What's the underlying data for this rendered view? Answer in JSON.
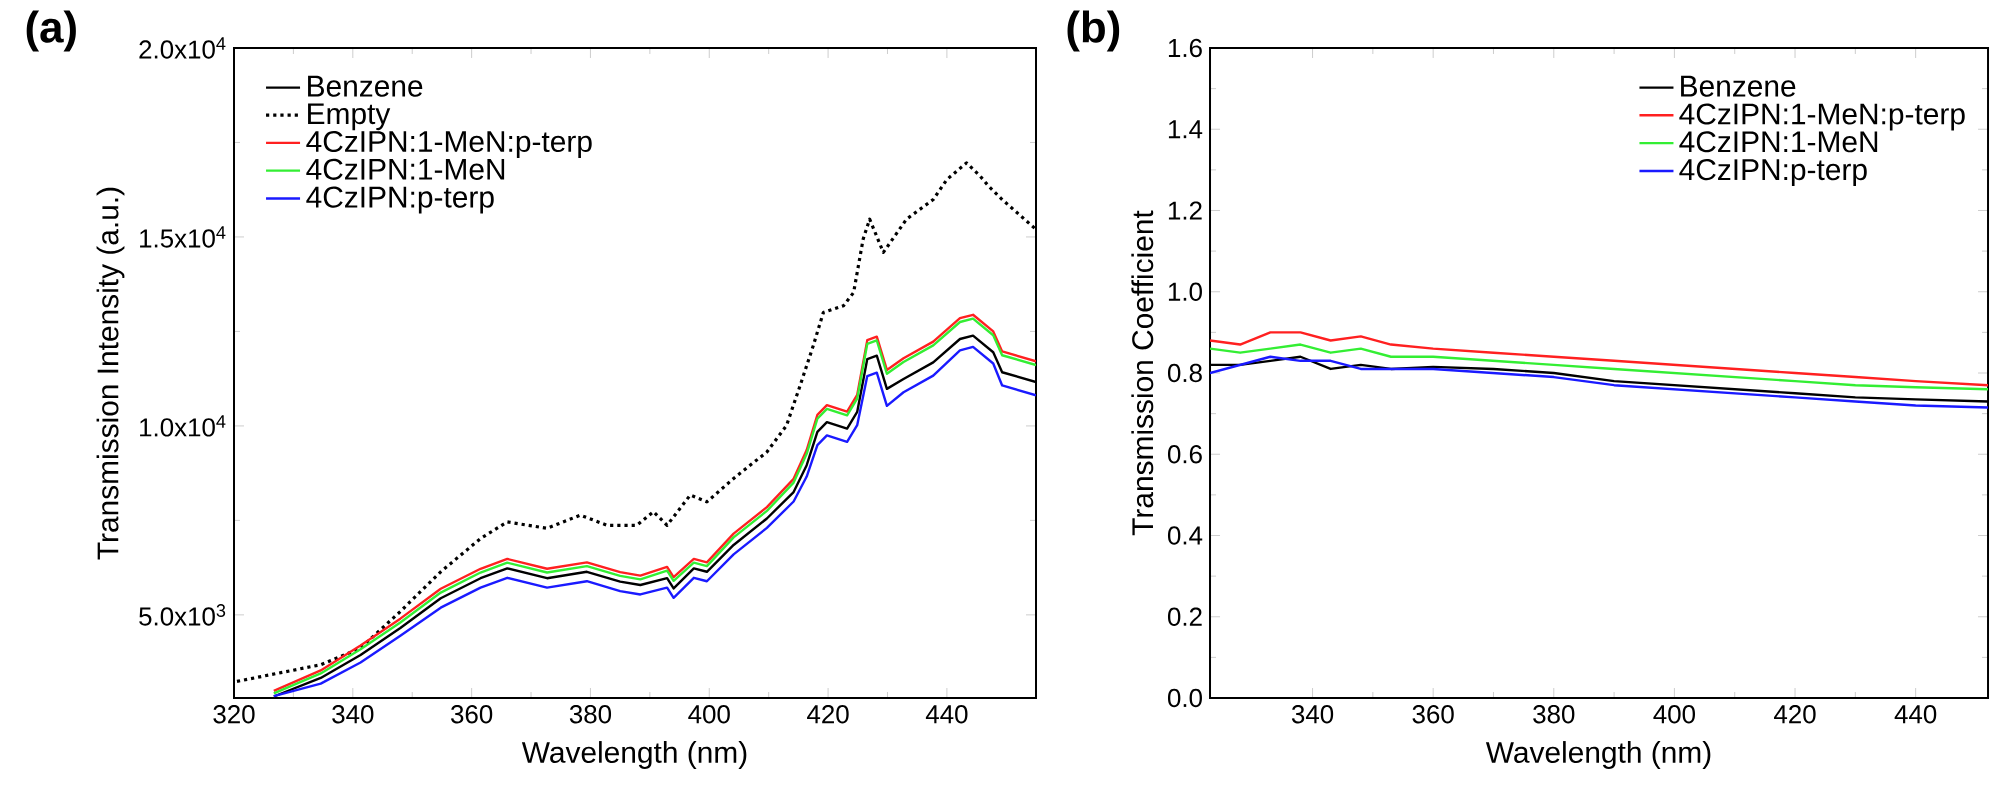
{
  "chart_data": [
    {
      "type": "line",
      "title": "(a)",
      "xlabel": "Wavelength (nm)",
      "ylabel": "Transmission Intensity (a.u.)",
      "xlim": [
        320,
        455
      ],
      "ylim": [
        2800,
        20000
      ],
      "xticks": [
        320,
        340,
        360,
        380,
        400,
        420,
        440
      ],
      "yticks": [
        {
          "value": 5000,
          "label": "5.0x10$^{3}$"
        },
        {
          "value": 10000,
          "label": "1.0x10$^{4}$"
        },
        {
          "value": 15000,
          "label": "1.5x10$^{4}$"
        },
        {
          "value": 20000,
          "label": "2.0x10$^{4}$"
        }
      ],
      "legend": "top left",
      "marker": "none",
      "series": [
        {
          "name": "Benzene",
          "color": "#000000",
          "x": [
            326.7,
            334.6,
            341.3,
            348,
            354.8,
            361.5,
            366,
            372.7,
            379.4,
            385,
            388.4,
            392.9,
            394,
            397.4,
            399.6,
            404.1,
            409.7,
            414.2,
            416.4,
            418.2,
            419.8,
            423.2,
            424.9,
            426.6,
            428.2,
            429.9,
            432.7,
            437.7,
            442.2,
            444.4,
            447.8,
            449.3,
            455
          ],
          "values": [
            2840,
            3330,
            3940,
            4650,
            5440,
            5970,
            6230,
            5970,
            6140,
            5880,
            5790,
            5970,
            5700,
            6230,
            6140,
            6850,
            7550,
            8250,
            8960,
            9840,
            10100,
            9930,
            10370,
            11770,
            11860,
            10980,
            11240,
            11680,
            12300,
            12390,
            11950,
            11420,
            11160
          ]
        },
        {
          "name": "Empty",
          "color": "#000000",
          "line_style": "dotted",
          "x": [
            320.5,
            334.6,
            341.3,
            348,
            354.8,
            361.5,
            366,
            372.7,
            378.3,
            382.8,
            387.8,
            390.6,
            392.9,
            396.8,
            399.6,
            404.1,
            409.7,
            413,
            415.3,
            417.5,
            419.2,
            422.6,
            424.3,
            425.9,
            427,
            429.3,
            433.2,
            437.7,
            440,
            443.3,
            445.6,
            447,
            449.3,
            455
          ],
          "values": [
            3240,
            3680,
            4120,
            5090,
            6140,
            7020,
            7460,
            7290,
            7640,
            7370,
            7370,
            7730,
            7370,
            8170,
            7990,
            8610,
            9310,
            10010,
            11070,
            12120,
            13000,
            13180,
            13530,
            14940,
            15470,
            14590,
            15470,
            15990,
            16520,
            16960,
            16610,
            16350,
            15990,
            15200
          ]
        },
        {
          "name": "4CzIPN:1-MeN:p-terp",
          "color": "#ff2020",
          "x": [
            326.7,
            334.6,
            341.3,
            348,
            354.8,
            361.5,
            366,
            372.7,
            379.4,
            385,
            388.4,
            392.9,
            394,
            397.4,
            399.6,
            404.1,
            409.7,
            414.2,
            416.4,
            418.2,
            419.8,
            423.2,
            424.9,
            426.6,
            428.2,
            429.9,
            432.7,
            437.7,
            442.2,
            444.4,
            447.8,
            449.3,
            455
          ],
          "values": [
            2990,
            3530,
            4190,
            4900,
            5690,
            6220,
            6480,
            6220,
            6390,
            6130,
            6040,
            6270,
            6000,
            6480,
            6390,
            7150,
            7850,
            8600,
            9360,
            10290,
            10550,
            10380,
            10820,
            12270,
            12360,
            11480,
            11790,
            12230,
            12850,
            12940,
            12500,
            11970,
            11710
          ]
        },
        {
          "name": "4CzIPN:1-MeN",
          "color": "#33ee33",
          "x": [
            326.7,
            334.6,
            341.3,
            348,
            354.8,
            361.5,
            366,
            372.7,
            379.4,
            385,
            388.4,
            392.9,
            394,
            397.4,
            399.6,
            404.1,
            409.7,
            414.2,
            416.4,
            418.2,
            419.8,
            423.2,
            424.9,
            426.6,
            428.2,
            429.9,
            432.7,
            437.7,
            442.2,
            444.4,
            447.8,
            449.3,
            455
          ],
          "values": [
            2920,
            3450,
            4090,
            4800,
            5590,
            6120,
            6380,
            6120,
            6290,
            6030,
            5940,
            6170,
            5900,
            6380,
            6290,
            7050,
            7750,
            8500,
            9260,
            10190,
            10450,
            10280,
            10720,
            12170,
            12260,
            11380,
            11690,
            12130,
            12750,
            12840,
            12400,
            11870,
            11610
          ]
        },
        {
          "name": "4CzIPN:p-terp",
          "color": "#1a1aff",
          "x": [
            326.7,
            334.6,
            341.3,
            348,
            354.8,
            361.5,
            366,
            372.7,
            379.4,
            385,
            388.4,
            392.9,
            394,
            397.4,
            399.6,
            404.1,
            409.7,
            414.2,
            416.4,
            418.2,
            419.8,
            423.2,
            424.9,
            426.6,
            428.2,
            429.9,
            432.7,
            437.7,
            442.2,
            444.4,
            447.8,
            449.3,
            455
          ],
          "values": [
            2850,
            3180,
            3740,
            4450,
            5190,
            5720,
            5980,
            5720,
            5890,
            5630,
            5540,
            5720,
            5450,
            5980,
            5890,
            6600,
            7300,
            8000,
            8660,
            9490,
            9750,
            9580,
            10020,
            11320,
            11410,
            10530,
            10890,
            11330,
            12000,
            12090,
            11650,
            11070,
            10810
          ]
        }
      ]
    },
    {
      "type": "line",
      "title": "(b)",
      "xlabel": "Wavelength (nm)",
      "ylabel": "Transmission Coefficient",
      "xlim": [
        323,
        452
      ],
      "ylim": [
        0,
        1.6
      ],
      "xticks": [
        340,
        360,
        380,
        400,
        420,
        440
      ],
      "yticks": [
        {
          "value": 0,
          "label": "0.0"
        },
        {
          "value": 0.2,
          "label": "0.2"
        },
        {
          "value": 0.4,
          "label": "0.4"
        },
        {
          "value": 0.6,
          "label": "0.6"
        },
        {
          "value": 0.8,
          "label": "0.8"
        },
        {
          "value": 1.0,
          "label": "1.0"
        },
        {
          "value": 1.2,
          "label": "1.2"
        },
        {
          "value": 1.4,
          "label": "1.4"
        },
        {
          "value": 1.6,
          "label": "1.6"
        }
      ],
      "legend": "top right",
      "marker": "none",
      "series": [
        {
          "name": "Benzene",
          "color": "#000000",
          "x": [
            323,
            328,
            333,
            338,
            343,
            348,
            353,
            360,
            370,
            380,
            390,
            400,
            410,
            420,
            430,
            440,
            452
          ],
          "values": [
            0.82,
            0.82,
            0.83,
            0.84,
            0.81,
            0.82,
            0.81,
            0.815,
            0.81,
            0.8,
            0.78,
            0.77,
            0.76,
            0.75,
            0.74,
            0.735,
            0.73
          ]
        },
        {
          "name": "4CzIPN:1-MeN:p-terp",
          "color": "#ff2020",
          "x": [
            323,
            328,
            333,
            338,
            343,
            348,
            353,
            360,
            370,
            380,
            390,
            400,
            410,
            420,
            430,
            440,
            452
          ],
          "values": [
            0.88,
            0.87,
            0.9,
            0.9,
            0.88,
            0.89,
            0.87,
            0.86,
            0.85,
            0.84,
            0.83,
            0.82,
            0.81,
            0.8,
            0.79,
            0.78,
            0.77
          ]
        },
        {
          "name": "4CzIPN:1-MeN",
          "color": "#33ee33",
          "x": [
            323,
            328,
            333,
            338,
            343,
            348,
            353,
            360,
            370,
            380,
            390,
            400,
            410,
            420,
            430,
            440,
            452
          ],
          "values": [
            0.86,
            0.85,
            0.86,
            0.87,
            0.85,
            0.86,
            0.84,
            0.84,
            0.83,
            0.82,
            0.81,
            0.8,
            0.79,
            0.78,
            0.77,
            0.765,
            0.76
          ]
        },
        {
          "name": "4CzIPN:p-terp",
          "color": "#1a1aff",
          "x": [
            323,
            328,
            333,
            338,
            343,
            348,
            353,
            360,
            370,
            380,
            390,
            400,
            410,
            420,
            430,
            440,
            452
          ],
          "values": [
            0.8,
            0.82,
            0.84,
            0.83,
            0.83,
            0.81,
            0.81,
            0.81,
            0.8,
            0.79,
            0.77,
            0.76,
            0.75,
            0.74,
            0.73,
            0.72,
            0.715
          ]
        }
      ]
    }
  ]
}
